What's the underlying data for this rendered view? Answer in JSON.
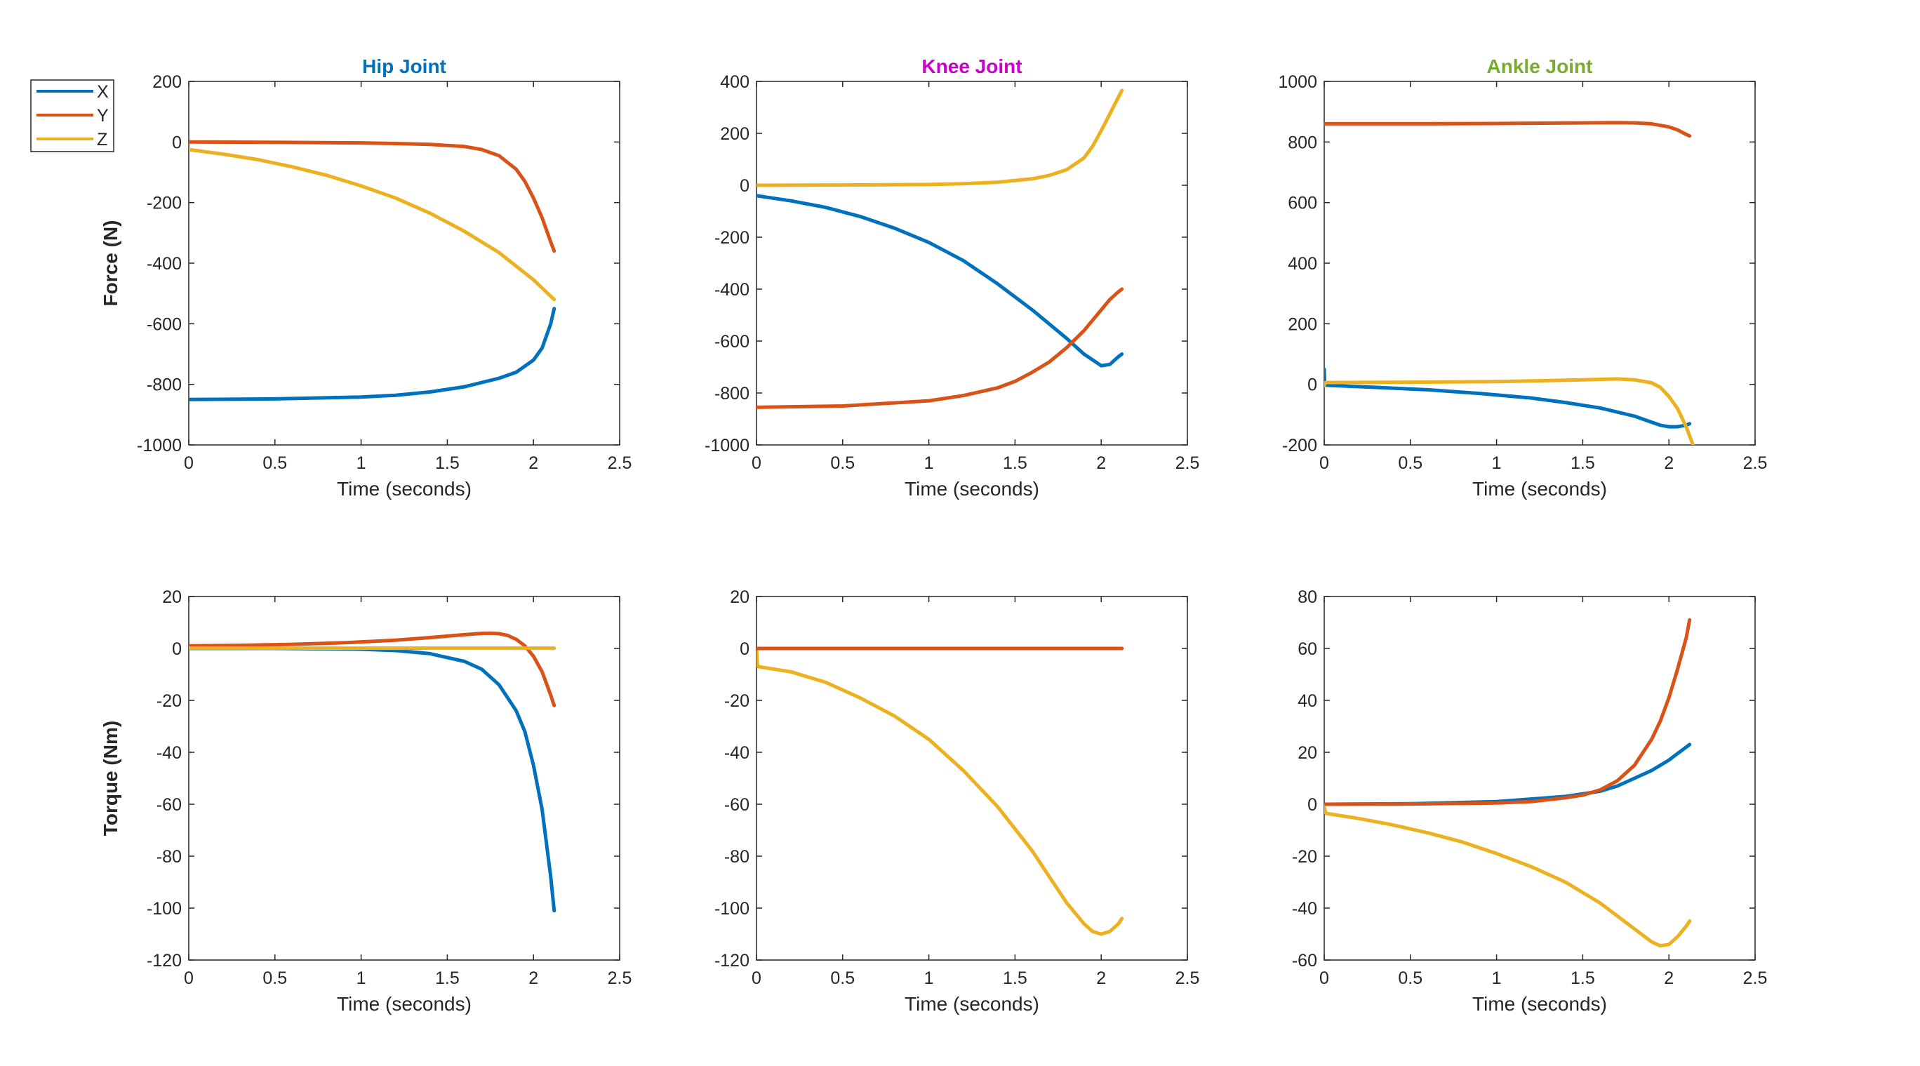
{
  "colors": {
    "X": "#0072BD",
    "Y": "#D95319",
    "Z": "#EDB120",
    "axis": "#262626",
    "hip_title": "#0072BD",
    "knee_title": "#CC00CC",
    "ankle_title": "#77AC30"
  },
  "legend": {
    "entries": [
      "X",
      "Y",
      "Z"
    ]
  },
  "chart_data": [
    {
      "type": "line",
      "id": "hip-force",
      "title": "Hip Joint",
      "title_color_key": "hip_title",
      "xlabel": "Time (seconds)",
      "ylabel": "Force (N)",
      "xlim": [
        0,
        2.5
      ],
      "ylim": [
        -1000,
        200
      ],
      "xticks": [
        0,
        0.5,
        1,
        1.5,
        2,
        2.5
      ],
      "yticks": [
        -1000,
        -800,
        -600,
        -400,
        -200,
        0,
        200
      ],
      "series": [
        {
          "name": "X",
          "x": [
            0,
            0.5,
            1,
            1.2,
            1.4,
            1.6,
            1.8,
            1.9,
            2.0,
            2.05,
            2.1,
            2.12
          ],
          "y": [
            -850,
            -848,
            -842,
            -836,
            -825,
            -808,
            -780,
            -760,
            -720,
            -680,
            -600,
            -550
          ]
        },
        {
          "name": "Y",
          "x": [
            0,
            0.5,
            1,
            1.2,
            1.4,
            1.6,
            1.7,
            1.8,
            1.9,
            1.95,
            2.0,
            2.05,
            2.1,
            2.12
          ],
          "y": [
            0,
            -1,
            -3,
            -5,
            -8,
            -15,
            -25,
            -45,
            -90,
            -130,
            -185,
            -250,
            -330,
            -360
          ]
        },
        {
          "name": "Z",
          "x": [
            0,
            0.2,
            0.4,
            0.6,
            0.8,
            1.0,
            1.2,
            1.4,
            1.6,
            1.8,
            2.0,
            2.12
          ],
          "y": [
            -25,
            -40,
            -58,
            -82,
            -110,
            -145,
            -185,
            -235,
            -295,
            -365,
            -455,
            -520
          ]
        }
      ]
    },
    {
      "type": "line",
      "id": "knee-force",
      "title": "Knee Joint",
      "title_color_key": "knee_title",
      "xlabel": "Time (seconds)",
      "ylabel": "",
      "xlim": [
        0,
        2.5
      ],
      "ylim": [
        -1000,
        400
      ],
      "xticks": [
        0,
        0.5,
        1,
        1.5,
        2,
        2.5
      ],
      "yticks": [
        -1000,
        -800,
        -600,
        -400,
        -200,
        0,
        200,
        400
      ],
      "series": [
        {
          "name": "X",
          "x": [
            0,
            0.2,
            0.4,
            0.6,
            0.8,
            1.0,
            1.2,
            1.4,
            1.6,
            1.8,
            1.9,
            2.0,
            2.05,
            2.1,
            2.12
          ],
          "y": [
            -40,
            -60,
            -85,
            -120,
            -165,
            -220,
            -290,
            -380,
            -480,
            -590,
            -650,
            -695,
            -690,
            -660,
            -650
          ]
        },
        {
          "name": "Y",
          "x": [
            0,
            0.5,
            1.0,
            1.2,
            1.4,
            1.5,
            1.6,
            1.7,
            1.8,
            1.9,
            2.0,
            2.05,
            2.1,
            2.12
          ],
          "y": [
            -855,
            -850,
            -830,
            -810,
            -780,
            -755,
            -720,
            -680,
            -625,
            -560,
            -480,
            -440,
            -410,
            -400
          ]
        },
        {
          "name": "Z",
          "x": [
            0,
            0.5,
            1.0,
            1.2,
            1.4,
            1.6,
            1.7,
            1.8,
            1.9,
            1.95,
            2.0,
            2.05,
            2.1,
            2.12
          ],
          "y": [
            0,
            1,
            3,
            6,
            12,
            25,
            38,
            60,
            105,
            150,
            210,
            275,
            340,
            365
          ]
        }
      ]
    },
    {
      "type": "line",
      "id": "ankle-force",
      "title": "Ankle Joint",
      "title_color_key": "ankle_title",
      "xlabel": "Time (seconds)",
      "ylabel": "",
      "xlim": [
        0,
        2.5
      ],
      "ylim": [
        -200,
        1000
      ],
      "xticks": [
        0,
        0.5,
        1,
        1.5,
        2,
        2.5
      ],
      "yticks": [
        -200,
        0,
        200,
        400,
        600,
        800,
        1000
      ],
      "series": [
        {
          "name": "X",
          "x": [
            0,
            0.003,
            0.01,
            0.3,
            0.6,
            0.9,
            1.2,
            1.4,
            1.6,
            1.8,
            1.9,
            1.95,
            2.0,
            2.05,
            2.1,
            2.12
          ],
          "y": [
            50,
            0,
            -3,
            -10,
            -18,
            -30,
            -45,
            -60,
            -78,
            -105,
            -125,
            -135,
            -140,
            -140,
            -135,
            -130
          ]
        },
        {
          "name": "Y",
          "x": [
            0,
            0.5,
            1.0,
            1.5,
            1.7,
            1.8,
            1.9,
            2.0,
            2.05,
            2.1,
            2.12
          ],
          "y": [
            860,
            860,
            861,
            863,
            864,
            863,
            860,
            850,
            840,
            825,
            820
          ]
        },
        {
          "name": "Z",
          "x": [
            0,
            0.003,
            0.01,
            0.5,
            1.0,
            1.5,
            1.7,
            1.8,
            1.9,
            1.95,
            2.0,
            2.05,
            2.1,
            2.14
          ],
          "y": [
            -5,
            5,
            6,
            7,
            9,
            15,
            18,
            15,
            5,
            -10,
            -40,
            -80,
            -140,
            -200
          ]
        }
      ]
    },
    {
      "type": "line",
      "id": "hip-torque",
      "title": "",
      "xlabel": "Time (seconds)",
      "ylabel": "Torque (Nm)",
      "xlim": [
        0,
        2.5
      ],
      "ylim": [
        -120,
        20
      ],
      "xticks": [
        0,
        0.5,
        1,
        1.5,
        2,
        2.5
      ],
      "yticks": [
        -120,
        -100,
        -80,
        -60,
        -40,
        -20,
        0,
        20
      ],
      "series": [
        {
          "name": "X",
          "x": [
            0,
            0.5,
            1.0,
            1.2,
            1.4,
            1.6,
            1.7,
            1.8,
            1.9,
            1.95,
            2.0,
            2.05,
            2.1,
            2.12
          ],
          "y": [
            0,
            0,
            -0.3,
            -0.8,
            -2,
            -5,
            -8,
            -14,
            -24,
            -32,
            -45,
            -62,
            -88,
            -101
          ]
        },
        {
          "name": "Y",
          "x": [
            0,
            0.3,
            0.6,
            0.9,
            1.2,
            1.4,
            1.6,
            1.7,
            1.75,
            1.8,
            1.85,
            1.9,
            1.95,
            2.0,
            2.05,
            2.1,
            2.12
          ],
          "y": [
            1,
            1.2,
            1.6,
            2.2,
            3.2,
            4.2,
            5.3,
            5.8,
            5.9,
            5.7,
            5.0,
            3.5,
            1.0,
            -3,
            -9,
            -18,
            -22
          ]
        },
        {
          "name": "Z",
          "x": [
            0,
            0.5,
            1.0,
            1.5,
            2.0,
            2.12
          ],
          "y": [
            0.1,
            0.1,
            0.1,
            0.1,
            0.1,
            0.1
          ]
        }
      ]
    },
    {
      "type": "line",
      "id": "knee-torque",
      "title": "",
      "xlabel": "Time (seconds)",
      "ylabel": "",
      "xlim": [
        0,
        2.5
      ],
      "ylim": [
        -120,
        20
      ],
      "xticks": [
        0,
        0.5,
        1,
        1.5,
        2,
        2.5
      ],
      "yticks": [
        -120,
        -100,
        -80,
        -60,
        -40,
        -20,
        0,
        20
      ],
      "series": [
        {
          "name": "X",
          "x": [
            0,
            0.5,
            1.0,
            1.5,
            2.0,
            2.12
          ],
          "y": [
            0,
            0,
            0,
            0,
            0,
            0
          ]
        },
        {
          "name": "Z",
          "x": [
            0,
            0.005,
            0.01,
            0.2,
            0.4,
            0.6,
            0.8,
            1.0,
            1.2,
            1.4,
            1.6,
            1.7,
            1.8,
            1.9,
            1.95,
            2.0,
            2.05,
            2.1,
            2.12
          ],
          "y": [
            0,
            -6,
            -7,
            -9,
            -13,
            -19,
            -26,
            -35,
            -47,
            -61,
            -78,
            -88,
            -98,
            -106,
            -109,
            -110,
            -109,
            -106,
            -104
          ]
        },
        {
          "name": "Y",
          "x": [
            0,
            0.5,
            1.0,
            1.5,
            2.0,
            2.12
          ],
          "y": [
            0,
            0,
            0,
            0,
            0,
            0
          ]
        }
      ]
    },
    {
      "type": "line",
      "id": "ankle-torque",
      "title": "",
      "xlabel": "Time (seconds)",
      "ylabel": "",
      "xlim": [
        0,
        2.5
      ],
      "ylim": [
        -60,
        80
      ],
      "xticks": [
        0,
        0.5,
        1,
        1.5,
        2,
        2.5
      ],
      "yticks": [
        -60,
        -40,
        -20,
        0,
        20,
        40,
        60,
        80
      ],
      "series": [
        {
          "name": "X",
          "x": [
            0,
            0.5,
            1.0,
            1.2,
            1.4,
            1.5,
            1.6,
            1.7,
            1.8,
            1.9,
            2.0,
            2.05,
            2.1,
            2.12
          ],
          "y": [
            0,
            0.2,
            1,
            2,
            3,
            4,
            5,
            7,
            10,
            13,
            17,
            19.5,
            22,
            23
          ]
        },
        {
          "name": "Y",
          "x": [
            0,
            0.5,
            1.0,
            1.2,
            1.4,
            1.5,
            1.6,
            1.7,
            1.8,
            1.9,
            1.95,
            2.0,
            2.05,
            2.1,
            2.12
          ],
          "y": [
            0,
            0.1,
            0.5,
            1,
            2.5,
            3.5,
            5.5,
            9,
            15,
            25,
            32,
            41,
            52,
            64,
            71
          ]
        },
        {
          "name": "Z",
          "x": [
            0,
            0.01,
            0.2,
            0.4,
            0.6,
            0.8,
            1.0,
            1.2,
            1.4,
            1.6,
            1.7,
            1.8,
            1.9,
            1.95,
            2.0,
            2.05,
            2.1,
            2.12
          ],
          "y": [
            -1,
            -3.5,
            -5.5,
            -8,
            -11,
            -14.5,
            -19,
            -24,
            -30,
            -38,
            -43,
            -48,
            -53,
            -54.5,
            -54,
            -51,
            -47,
            -45
          ]
        }
      ]
    }
  ]
}
